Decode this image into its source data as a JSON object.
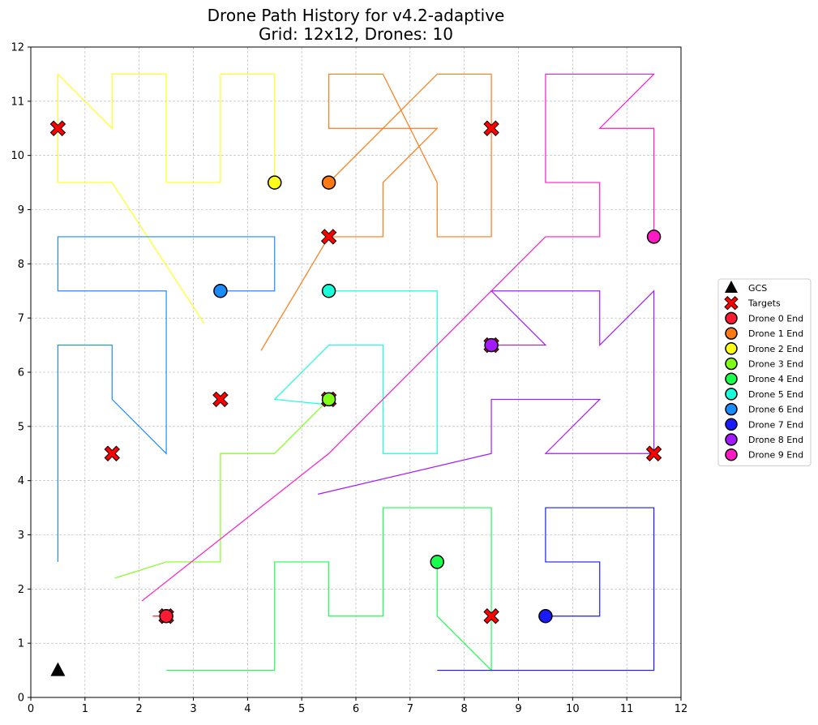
{
  "chart_data": {
    "type": "line",
    "title": "Drone Path History for v4.2-adaptive",
    "subtitle": "Grid: 12x12, Drones: 10",
    "xlabel": "",
    "ylabel": "",
    "xlim": [
      0,
      12
    ],
    "ylim": [
      0,
      12
    ],
    "x_ticks": [
      "0",
      "1",
      "2",
      "3",
      "4",
      "5",
      "6",
      "7",
      "8",
      "9",
      "10",
      "11",
      "12"
    ],
    "y_ticks": [
      "0",
      "1",
      "2",
      "3",
      "4",
      "5",
      "6",
      "7",
      "8",
      "9",
      "10",
      "11",
      "12"
    ],
    "grid": true,
    "legend_position": "right",
    "gcs": {
      "label": "GCS",
      "x": 0.5,
      "y": 0.5,
      "color": "#000000"
    },
    "targets": {
      "label": "Targets",
      "color": "#ff0000",
      "points": [
        [
          0.5,
          10.5
        ],
        [
          8.5,
          10.5
        ],
        [
          5.5,
          8.5
        ],
        [
          3.5,
          5.5
        ],
        [
          1.5,
          4.5
        ],
        [
          11.5,
          4.5
        ],
        [
          8.5,
          1.5
        ],
        [
          2.5,
          1.5
        ],
        [
          5.5,
          5.5
        ],
        [
          8.5,
          6.5
        ]
      ]
    },
    "series": [
      {
        "name": "Drone 0 End",
        "color": "#ff1a33",
        "path": [
          [
            2.25,
            1.5
          ],
          [
            2.5,
            1.5
          ]
        ],
        "end": [
          2.5,
          1.5
        ]
      },
      {
        "name": "Drone 1 End",
        "color": "#ff7a14",
        "path": [
          [
            4.25,
            6.4
          ],
          [
            5.5,
            8.5
          ],
          [
            6.5,
            8.5
          ],
          [
            6.5,
            9.5
          ],
          [
            7.5,
            10.5
          ],
          [
            5.5,
            10.5
          ],
          [
            5.5,
            11.5
          ],
          [
            6.5,
            11.5
          ],
          [
            7.5,
            9.5
          ],
          [
            7.5,
            8.5
          ],
          [
            8.5,
            8.5
          ],
          [
            8.5,
            11.5
          ],
          [
            7.5,
            11.5
          ],
          [
            5.5,
            9.5
          ]
        ],
        "end": [
          5.5,
          9.5
        ]
      },
      {
        "name": "Drone 2 End",
        "color": "#ffff1a",
        "path": [
          [
            3.2,
            6.9
          ],
          [
            1.5,
            9.5
          ],
          [
            0.5,
            9.5
          ],
          [
            0.5,
            11.5
          ],
          [
            1.5,
            10.5
          ],
          [
            1.5,
            11.5
          ],
          [
            2.5,
            11.5
          ],
          [
            2.5,
            9.5
          ],
          [
            3.5,
            9.5
          ],
          [
            3.5,
            11.5
          ],
          [
            4.5,
            11.5
          ],
          [
            4.5,
            9.5
          ]
        ],
        "end": [
          4.5,
          9.5
        ]
      },
      {
        "name": "Drone 3 End",
        "color": "#7fff1a",
        "path": [
          [
            1.55,
            2.2
          ],
          [
            2.5,
            2.5
          ],
          [
            3.5,
            2.5
          ],
          [
            3.5,
            4.5
          ],
          [
            4.5,
            4.5
          ],
          [
            5.5,
            5.5
          ]
        ],
        "end": [
          5.5,
          5.5
        ]
      },
      {
        "name": "Drone 4 End",
        "color": "#1aff4d",
        "path": [
          [
            2.5,
            0.5
          ],
          [
            4.5,
            0.5
          ],
          [
            4.5,
            2.5
          ],
          [
            5.5,
            2.5
          ],
          [
            5.5,
            1.5
          ],
          [
            6.5,
            1.5
          ],
          [
            6.5,
            3.5
          ],
          [
            8.5,
            3.5
          ],
          [
            8.5,
            0.5
          ],
          [
            7.5,
            1.5
          ],
          [
            7.5,
            2.5
          ]
        ],
        "end": [
          7.5,
          2.5
        ]
      },
      {
        "name": "Drone 5 End",
        "color": "#1affd9",
        "path": [
          [
            5.5,
            5.4
          ],
          [
            4.5,
            5.5
          ],
          [
            5.5,
            6.5
          ],
          [
            6.5,
            6.5
          ],
          [
            6.5,
            4.5
          ],
          [
            7.5,
            4.5
          ],
          [
            7.5,
            7.5
          ],
          [
            5.5,
            7.5
          ]
        ],
        "end": [
          5.5,
          7.5
        ]
      },
      {
        "name": "Drone 6 End",
        "color": "#1a8cff",
        "path": [
          [
            0.5,
            2.5
          ],
          [
            0.5,
            6.5
          ],
          [
            1.5,
            6.5
          ],
          [
            1.5,
            5.5
          ],
          [
            2.5,
            4.5
          ],
          [
            2.5,
            7.5
          ],
          [
            0.5,
            7.5
          ],
          [
            0.5,
            8.5
          ],
          [
            4.5,
            8.5
          ],
          [
            4.5,
            7.5
          ],
          [
            3.5,
            7.5
          ]
        ],
        "end": [
          3.5,
          7.5
        ]
      },
      {
        "name": "Drone 7 End",
        "color": "#1a1aff",
        "path": [
          [
            7.5,
            0.5
          ],
          [
            11.5,
            0.5
          ],
          [
            11.5,
            3.5
          ],
          [
            9.5,
            3.5
          ],
          [
            9.5,
            2.5
          ],
          [
            10.5,
            2.5
          ],
          [
            10.5,
            1.5
          ],
          [
            9.5,
            1.5
          ]
        ],
        "end": [
          9.5,
          1.5
        ]
      },
      {
        "name": "Drone 8 End",
        "color": "#a31aff",
        "path": [
          [
            5.3,
            3.75
          ],
          [
            8.5,
            4.5
          ],
          [
            8.5,
            5.5
          ],
          [
            10.5,
            5.5
          ],
          [
            9.5,
            4.5
          ],
          [
            11.5,
            4.5
          ],
          [
            11.5,
            7.5
          ],
          [
            10.5,
            6.5
          ],
          [
            10.5,
            7.5
          ],
          [
            8.5,
            7.5
          ],
          [
            9.5,
            6.5
          ],
          [
            8.5,
            6.5
          ]
        ],
        "end": [
          8.5,
          6.5
        ]
      },
      {
        "name": "Drone 9 End",
        "color": "#ff1ac6",
        "path": [
          [
            2.05,
            1.78
          ],
          [
            5.5,
            4.5
          ],
          [
            9.5,
            8.5
          ],
          [
            10.5,
            8.5
          ],
          [
            10.5,
            9.5
          ],
          [
            9.5,
            9.5
          ],
          [
            9.5,
            11.5
          ],
          [
            11.5,
            11.5
          ],
          [
            10.5,
            10.5
          ],
          [
            11.5,
            10.5
          ],
          [
            11.5,
            8.5
          ]
        ],
        "end": [
          11.5,
          8.5
        ]
      }
    ]
  }
}
